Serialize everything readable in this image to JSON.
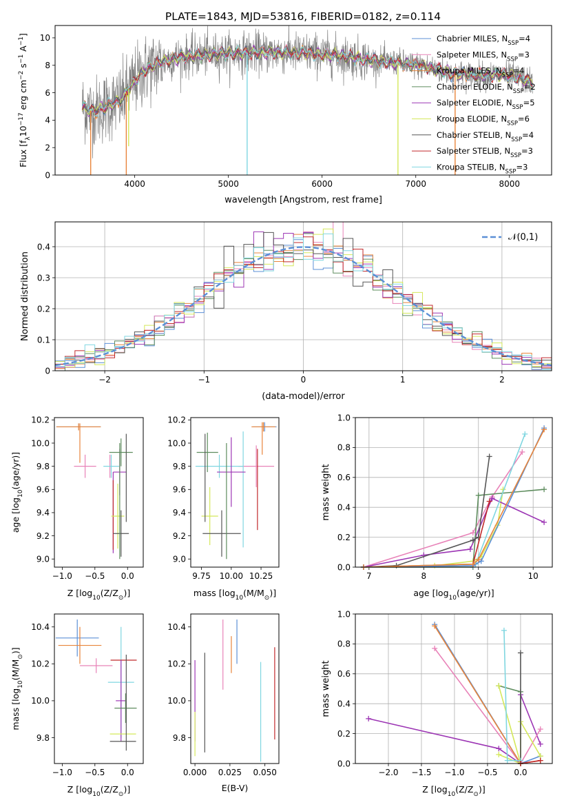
{
  "title": "PLATE=1843, MJD=53816, FIBERID=0182, z=0.114",
  "colors": {
    "chabrier_miles": "#5b8fd6",
    "salpeter_miles": "#e882b8",
    "kroupa_miles": "#e8843a",
    "chabrier_elodie": "#5d8c5d",
    "salpeter_elodie": "#9c35b4",
    "kroupa_elodie": "#d4e85a",
    "chabrier_stelib": "#555555",
    "salpeter_stelib": "#c0282b",
    "kroupa_stelib": "#7fd6e0",
    "data": "#808080",
    "normal": "#5b8fd6"
  },
  "chart_data": [
    {
      "name": "spectrum",
      "type": "line",
      "xlabel": "wavelength [Angstrom, rest frame]",
      "ylabel": "Flux [f",
      "ylabel_parts": [
        "Flux [f",
        "λ",
        "10",
        "−17",
        " erg cm",
        "−2",
        " s",
        "−1",
        " A",
        "−1",
        "]"
      ],
      "xlim": [
        3150,
        8450
      ],
      "ylim": [
        0,
        10.9
      ],
      "xticks": [
        4000,
        5000,
        6000,
        7000,
        8000
      ],
      "yticks": [
        0,
        2,
        4,
        6,
        8,
        10
      ],
      "legend_position": "upper-right",
      "legend": [
        {
          "key": "chabrier_miles",
          "pre": "Chabrier MILES, N",
          "sub": "SSP",
          "post": "=4"
        },
        {
          "key": "salpeter_miles",
          "pre": "Salpeter MILES, N",
          "sub": "SSP",
          "post": "=3"
        },
        {
          "key": "kroupa_miles",
          "pre": "Kroupa MILES, N",
          "sub": "SSP",
          "post": "=4"
        },
        {
          "key": "chabrier_elodie",
          "pre": "Chabrier ELODIE, N",
          "sub": "SSP",
          "post": "=2"
        },
        {
          "key": "salpeter_elodie",
          "pre": "Salpeter ELODIE, N",
          "sub": "SSP",
          "post": "=5"
        },
        {
          "key": "kroupa_elodie",
          "pre": "Kroupa ELODIE, N",
          "sub": "SSP",
          "post": "=6"
        },
        {
          "key": "chabrier_stelib",
          "pre": "Chabrier STELIB, N",
          "sub": "SSP",
          "post": "=4"
        },
        {
          "key": "salpeter_stelib",
          "pre": "Salpeter STELIB, N",
          "sub": "SSP",
          "post": "=3"
        },
        {
          "key": "kroupa_stelib",
          "pre": "Kroupa STELIB, N",
          "sub": "SSP",
          "post": "=3"
        }
      ],
      "continuum": [
        [
          3440,
          5.0
        ],
        [
          3560,
          4.6
        ],
        [
          3700,
          5.0
        ],
        [
          3850,
          5.4
        ],
        [
          3950,
          6.4
        ],
        [
          4100,
          7.6
        ],
        [
          4300,
          8.3
        ],
        [
          4500,
          8.6
        ],
        [
          4800,
          8.8
        ],
        [
          5100,
          8.9
        ],
        [
          5500,
          8.95
        ],
        [
          5900,
          8.85
        ],
        [
          6300,
          8.6
        ],
        [
          6600,
          8.3
        ],
        [
          6900,
          8.1
        ],
        [
          7100,
          7.9
        ],
        [
          7400,
          7.4
        ],
        [
          7700,
          7.25
        ],
        [
          7900,
          7.35
        ],
        [
          8100,
          7.1
        ],
        [
          8250,
          6.7
        ]
      ],
      "sharp_dips": [
        [
          3530,
          0
        ],
        [
          3910,
          0
        ],
        [
          3935,
          2.1
        ],
        [
          5200,
          0
        ],
        [
          6810,
          0
        ],
        [
          7420,
          0
        ]
      ]
    },
    {
      "name": "residuals",
      "type": "histogram",
      "xlabel": "(data-model)/error",
      "ylabel": "Normed distribution",
      "xlim": [
        -2.5,
        2.5
      ],
      "ylim": [
        0,
        0.48
      ],
      "xticks": [
        -2,
        -1,
        0,
        1,
        2
      ],
      "yticks": [
        0.0,
        0.1,
        0.2,
        0.3,
        0.4
      ],
      "legend_position": "upper-right",
      "legend_label": "𝒩(0,1)",
      "bin_width": 0.1,
      "bin_start": -2.5,
      "gaussian": {
        "mean": 0,
        "sigma": 1
      }
    },
    {
      "name": "age-vs-Z",
      "type": "errorbar",
      "xlabel": "Z [log",
      "xlabel_parts": [
        "Z [log",
        "10",
        "(Z/Z",
        "⊙",
        ")]"
      ],
      "ylabel_parts": [
        "age  [log",
        "10",
        "(age/yr)]"
      ],
      "xlim": [
        -1.12,
        0.24
      ],
      "ylim": [
        8.93,
        10.22
      ],
      "xticks": [
        -1.0,
        -0.5,
        0.0
      ],
      "xticklabels": [
        "−1.0",
        "−0.5",
        "0.0"
      ],
      "yticks": [
        9.0,
        9.2,
        9.4,
        9.6,
        9.8,
        10.0,
        10.2
      ],
      "points": [
        {
          "key": "chabrier_miles",
          "x": -0.75,
          "xerr": 0.34,
          "y": 10.14,
          "yerr": 0.03
        },
        {
          "key": "kroupa_miles",
          "x": -0.75,
          "xerr": 0.34,
          "y": 10.14,
          "yerr": 0.03
        },
        {
          "key": "kroupa_miles",
          "x": -0.73,
          "xerr": 0,
          "y": 10.0,
          "yerr": 0.17
        },
        {
          "key": "salpeter_miles",
          "x": -0.65,
          "xerr": 0.17,
          "y": 9.8,
          "yerr": 0.1
        },
        {
          "key": "salpeter_miles",
          "x": -0.27,
          "xerr": 0,
          "y": 9.8,
          "yerr": 0.1
        },
        {
          "key": "kroupa_stelib",
          "x": -0.25,
          "xerr": 0.12,
          "y": 9.8,
          "yerr": 0.1
        },
        {
          "key": "salpeter_elodie",
          "x": -0.22,
          "xerr": 0,
          "y": 9.4,
          "yerr": 0.35
        },
        {
          "key": "salpeter_stelib",
          "x": -0.22,
          "xerr": 0,
          "y": 9.38,
          "yerr": 0.3
        },
        {
          "key": "salpeter_elodie",
          "x": -0.12,
          "xerr": 0.1,
          "y": 9.75,
          "yerr": 0.2
        },
        {
          "key": "kroupa_elodie",
          "x": -0.15,
          "xerr": 0.1,
          "y": 9.37,
          "yerr": 0.28
        },
        {
          "key": "chabrier_stelib",
          "x": -0.1,
          "xerr": 0.12,
          "y": 9.22,
          "yerr": 0.2
        },
        {
          "key": "chabrier_elodie",
          "x": -0.1,
          "xerr": 0.18,
          "y": 9.92,
          "yerr": 0.12
        },
        {
          "key": "chabrier_elodie",
          "x": -0.12,
          "xerr": 0,
          "y": 9.5,
          "yerr": 0.5
        },
        {
          "key": "chabrier_stelib",
          "x": -0.02,
          "xerr": 0,
          "y": 9.7,
          "yerr": 0.38
        }
      ]
    },
    {
      "name": "age-vs-mass",
      "type": "errorbar",
      "xlabel_parts": [
        "mass [log",
        "10",
        "(M/M",
        "⊙",
        ")]"
      ],
      "xlim": [
        9.66,
        10.4
      ],
      "ylim": [
        8.93,
        10.22
      ],
      "xticks": [
        9.75,
        10.0,
        10.25
      ],
      "xticklabels": [
        "9.75",
        "10.00",
        "10.25"
      ],
      "yticks": [
        9.0,
        9.2,
        9.4,
        9.6,
        9.8,
        10.0,
        10.2
      ],
      "points": [
        {
          "key": "chabrier_miles",
          "x": 10.28,
          "xerr": 0.1,
          "y": 10.14,
          "yerr": 0.04
        },
        {
          "key": "kroupa_miles",
          "x": 10.27,
          "xerr": 0.1,
          "y": 10.14,
          "yerr": 0.04
        },
        {
          "key": "kroupa_miles",
          "x": 10.26,
          "xerr": 0,
          "y": 10.04,
          "yerr": 0.14
        },
        {
          "key": "salpeter_miles",
          "x": 10.21,
          "xerr": 0.15,
          "y": 9.8,
          "yerr": 0.18
        },
        {
          "key": "kroupa_stelib",
          "x": 9.9,
          "xerr": 0.2,
          "y": 9.8,
          "yerr": 0.1
        },
        {
          "key": "kroupa_stelib",
          "x": 10.1,
          "xerr": 0,
          "y": 9.6,
          "yerr": 0.5
        },
        {
          "key": "salpeter_elodie",
          "x": 10.0,
          "xerr": 0.12,
          "y": 9.75,
          "yerr": 0.3
        },
        {
          "key": "salpeter_stelib",
          "x": 10.22,
          "xerr": 0,
          "y": 9.6,
          "yerr": 0.35
        },
        {
          "key": "kroupa_elodie",
          "x": 9.82,
          "xerr": 0.07,
          "y": 9.37,
          "yerr": 0.25
        },
        {
          "key": "chabrier_stelib",
          "x": 9.92,
          "xerr": 0.16,
          "y": 9.22,
          "yerr": 0.2
        },
        {
          "key": "chabrier_elodie",
          "x": 9.8,
          "xerr": 0.09,
          "y": 9.92,
          "yerr": 0.17
        },
        {
          "key": "chabrier_elodie",
          "x": 9.96,
          "xerr": 0,
          "y": 9.5,
          "yerr": 0.5
        },
        {
          "key": "chabrier_stelib",
          "x": 9.78,
          "xerr": 0,
          "y": 9.7,
          "yerr": 0.38
        }
      ]
    },
    {
      "name": "massweight-vs-age",
      "type": "line",
      "xlabel_parts": [
        "age  [log",
        "10",
        "(age/yr)]"
      ],
      "ylabel": "mass weight",
      "xlim": [
        6.75,
        10.35
      ],
      "ylim": [
        0,
        1.0
      ],
      "xticks": [
        7,
        8,
        9,
        10
      ],
      "yticks": [
        0.0,
        0.2,
        0.4,
        0.6,
        0.8,
        1.0
      ],
      "series": [
        {
          "key": "salpeter_miles",
          "x": [
            6.9,
            8.9,
            9.25,
            9.8
          ],
          "y": [
            0.0,
            0.23,
            0.47,
            0.77
          ]
        },
        {
          "key": "kroupa_elodie",
          "x": [
            6.9,
            8.2,
            8.9,
            9.05,
            9.35,
            9.45
          ],
          "y": [
            0.0,
            0.01,
            0.04,
            0.07,
            0.28,
            0.52
          ]
        },
        {
          "key": "salpeter_elodie",
          "x": [
            6.9,
            8.0,
            8.85,
            9.25,
            10.2
          ],
          "y": [
            0.0,
            0.08,
            0.12,
            0.46,
            0.3
          ]
        },
        {
          "key": "chabrier_elodie",
          "x": [
            6.9,
            8.9,
            9.0,
            10.2
          ],
          "y": [
            0.0,
            0.0,
            0.48,
            0.52
          ]
        },
        {
          "key": "chabrier_stelib",
          "x": [
            6.9,
            7.5,
            8.9,
            9.0,
            9.2
          ],
          "y": [
            0.0,
            0.01,
            0.18,
            0.2,
            0.74
          ]
        },
        {
          "key": "salpeter_stelib",
          "x": [
            6.9,
            8.9,
            9.2
          ],
          "y": [
            0.0,
            0.02,
            0.44
          ]
        },
        {
          "key": "kroupa_stelib",
          "x": [
            6.9,
            8.9,
            8.95,
            9.85
          ],
          "y": [
            0.0,
            0.02,
            0.02,
            0.89
          ]
        },
        {
          "key": "chabrier_miles",
          "x": [
            6.9,
            8.9,
            9.05,
            10.2
          ],
          "y": [
            0.0,
            0.01,
            0.04,
            0.93
          ]
        },
        {
          "key": "kroupa_miles",
          "x": [
            6.9,
            8.9,
            9.0,
            10.2
          ],
          "y": [
            0.0,
            0.02,
            0.05,
            0.92
          ]
        }
      ]
    },
    {
      "name": "mass-vs-Z",
      "type": "errorbar",
      "xlabel_parts": [
        "Z [log",
        "10",
        "(Z/Z",
        "⊙",
        ")]"
      ],
      "ylabel_parts": [
        "mass [log",
        "10",
        "(M/M",
        "⊙",
        ")]"
      ],
      "xlim": [
        -1.12,
        0.24
      ],
      "ylim": [
        9.66,
        10.47
      ],
      "xticks": [
        -1.0,
        -0.5,
        0.0
      ],
      "xticklabels": [
        "−1.0",
        "−0.5",
        "0.0"
      ],
      "yticks": [
        9.8,
        10.0,
        10.2,
        10.4
      ],
      "points": [
        {
          "key": "chabrier_miles",
          "x": -0.77,
          "xerr": 0.33,
          "y": 10.34,
          "yerr": 0.1
        },
        {
          "key": "kroupa_miles",
          "x": -0.73,
          "xerr": 0.33,
          "y": 10.3,
          "yerr": 0.1
        },
        {
          "key": "salpeter_miles",
          "x": -0.48,
          "xerr": 0.25,
          "y": 10.19,
          "yerr": 0.04
        },
        {
          "key": "kroupa_stelib",
          "x": -0.1,
          "xerr": 0.2,
          "y": 10.1,
          "yerr": 0.3
        },
        {
          "key": "salpeter_stelib",
          "x": -0.06,
          "xerr": 0.2,
          "y": 10.22,
          "yerr": 0.0
        },
        {
          "key": "salpeter_elodie",
          "x": -0.1,
          "xerr": 0.08,
          "y": 10.0,
          "yerr": 0.22
        },
        {
          "key": "kroupa_elodie",
          "x": -0.07,
          "xerr": 0.2,
          "y": 9.82,
          "yerr": 0.0
        },
        {
          "key": "chabrier_elodie",
          "x": -0.03,
          "xerr": 0.17,
          "y": 9.96,
          "yerr": 0.08
        },
        {
          "key": "chabrier_stelib",
          "x": -0.07,
          "xerr": 0.2,
          "y": 9.78,
          "yerr": 0.0
        },
        {
          "key": "chabrier_stelib",
          "x": -0.02,
          "xerr": 0,
          "y": 9.99,
          "yerr": 0.26
        }
      ]
    },
    {
      "name": "mass-vs-ebv",
      "type": "errorbar",
      "xlabel": "E(B-V)",
      "xlim": [
        -0.003,
        0.06
      ],
      "ylim": [
        9.66,
        10.47
      ],
      "xticks": [
        0.0,
        0.025,
        0.05
      ],
      "xticklabels": [
        "0.000",
        "0.025",
        "0.050"
      ],
      "yticks": [
        9.8,
        10.0,
        10.2,
        10.4
      ],
      "points": [
        {
          "key": "salpeter_elodie",
          "x": 0.0,
          "xerr": 0,
          "y": 10.0,
          "yerr": 0.22
        },
        {
          "key": "kroupa_elodie",
          "x": 0.0,
          "xerr": 0,
          "y": 9.82,
          "yerr": 0.12
        },
        {
          "key": "chabrier_stelib",
          "x": 0.007,
          "xerr": 0,
          "y": 9.99,
          "yerr": 0.27
        },
        {
          "key": "salpeter_miles",
          "x": 0.02,
          "xerr": 0,
          "y": 10.25,
          "yerr": 0.19
        },
        {
          "key": "kroupa_miles",
          "x": 0.026,
          "xerr": 0,
          "y": 10.25,
          "yerr": 0.1
        },
        {
          "key": "chabrier_miles",
          "x": 0.03,
          "xerr": 0,
          "y": 10.32,
          "yerr": 0.12
        },
        {
          "key": "kroupa_stelib",
          "x": 0.047,
          "xerr": 0,
          "y": 9.94,
          "yerr": 0.27
        },
        {
          "key": "salpeter_stelib",
          "x": 0.057,
          "xerr": 0,
          "y": 10.04,
          "yerr": 0.25
        }
      ]
    },
    {
      "name": "massweight-vs-Z",
      "type": "line",
      "xlabel_parts": [
        "Z [log",
        "10",
        "(Z/Z",
        "⊙",
        ")]"
      ],
      "ylabel": "mass weight",
      "xlim": [
        -2.5,
        0.48
      ],
      "ylim": [
        0,
        1.0
      ],
      "xticks": [
        -2.0,
        -1.5,
        -1.0,
        -0.5,
        0.0
      ],
      "xticklabels": [
        "−2.0",
        "−1.5",
        "−1.0",
        "−0.5",
        "0.0"
      ],
      "yticks": [
        0.0,
        0.2,
        0.4,
        0.6,
        0.8,
        1.0
      ],
      "series": [
        {
          "key": "salpeter_elodie",
          "x": [
            -2.3,
            -0.33,
            0.0,
            0.0,
            0.3
          ],
          "y": [
            0.3,
            0.1,
            0.0,
            0.46,
            0.13
          ]
        },
        {
          "key": "salpeter_miles",
          "x": [
            -1.3,
            0.0,
            0.3
          ],
          "y": [
            0.77,
            0.0,
            0.23
          ]
        },
        {
          "key": "chabrier_miles",
          "x": [
            -1.3,
            0.0,
            0.3
          ],
          "y": [
            0.93,
            0.0,
            0.05
          ]
        },
        {
          "key": "kroupa_miles",
          "x": [
            -1.3,
            0.0,
            0.3
          ],
          "y": [
            0.92,
            0.0,
            0.02
          ]
        },
        {
          "key": "chabrier_elodie",
          "x": [
            -0.33,
            0.0,
            0.0
          ],
          "y": [
            0.52,
            0.48,
            0.0
          ]
        },
        {
          "key": "kroupa_elodie",
          "x": [
            -0.33,
            0.0,
            0.0,
            0.3
          ],
          "y": [
            0.52,
            0.0,
            0.28,
            0.05
          ]
        },
        {
          "key": "kroupa_elodie",
          "x": [
            -0.33,
            0.0
          ],
          "y": [
            0.06,
            0.0
          ]
        },
        {
          "key": "chabrier_stelib",
          "x": [
            0.0,
            0.0
          ],
          "y": [
            0.74,
            0.0
          ]
        },
        {
          "key": "kroupa_stelib",
          "x": [
            -0.25,
            -0.2,
            0.0
          ],
          "y": [
            0.89,
            0.02,
            0.02
          ]
        },
        {
          "key": "salpeter_stelib",
          "x": [
            0.0,
            0.3
          ],
          "y": [
            0.0,
            0.02
          ]
        }
      ]
    }
  ]
}
